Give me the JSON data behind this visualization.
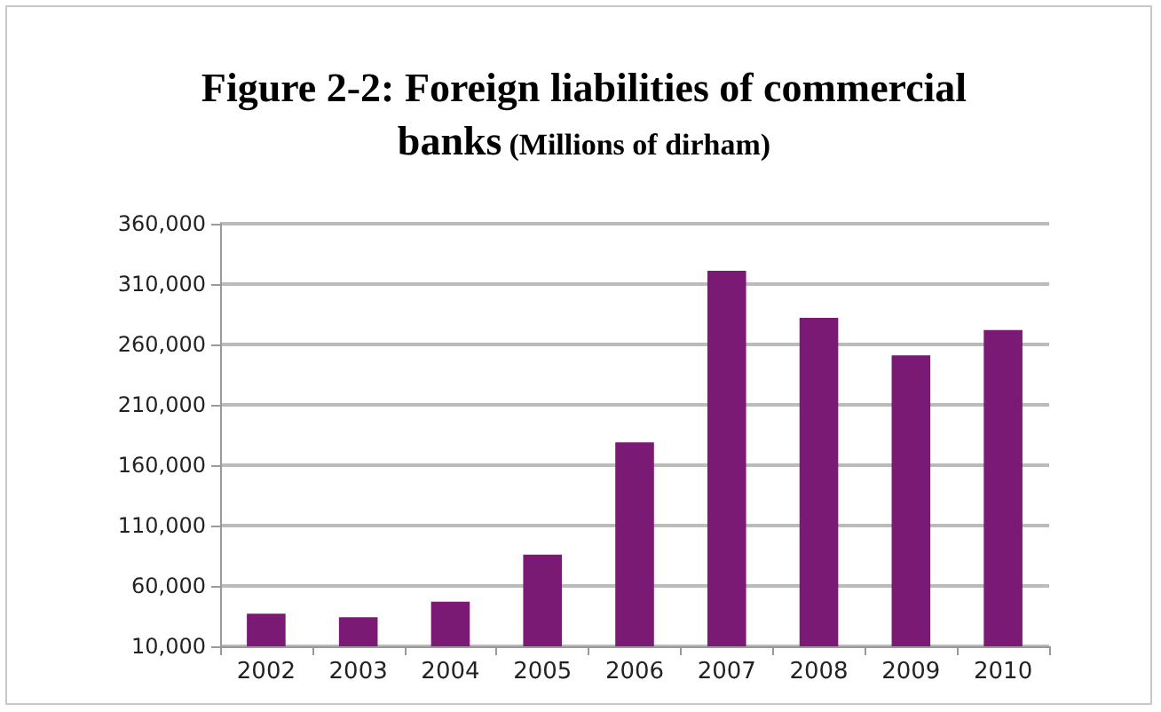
{
  "chart_data": {
    "type": "bar",
    "title": "Figure 2-2: Foreign liabilities of commercial banks",
    "subtitle": "(Millions of dirham)",
    "categories": [
      "2002",
      "2003",
      "2004",
      "2005",
      "2006",
      "2007",
      "2008",
      "2009",
      "2010"
    ],
    "values": [
      37000,
      34000,
      47000,
      86000,
      179000,
      321000,
      282000,
      251000,
      272000
    ],
    "color": "#7b1a74",
    "ylim": [
      10000,
      360000
    ],
    "yticks": [
      {
        "value": 10000,
        "label": "10,000"
      },
      {
        "value": 60000,
        "label": "60,000"
      },
      {
        "value": 110000,
        "label": "110,000"
      },
      {
        "value": 160000,
        "label": "160,000"
      },
      {
        "value": 210000,
        "label": "210,000"
      },
      {
        "value": 260000,
        "label": "260,000"
      },
      {
        "value": 310000,
        "label": "310,000"
      },
      {
        "value": 360000,
        "label": "360,000"
      }
    ],
    "grid": "y"
  }
}
